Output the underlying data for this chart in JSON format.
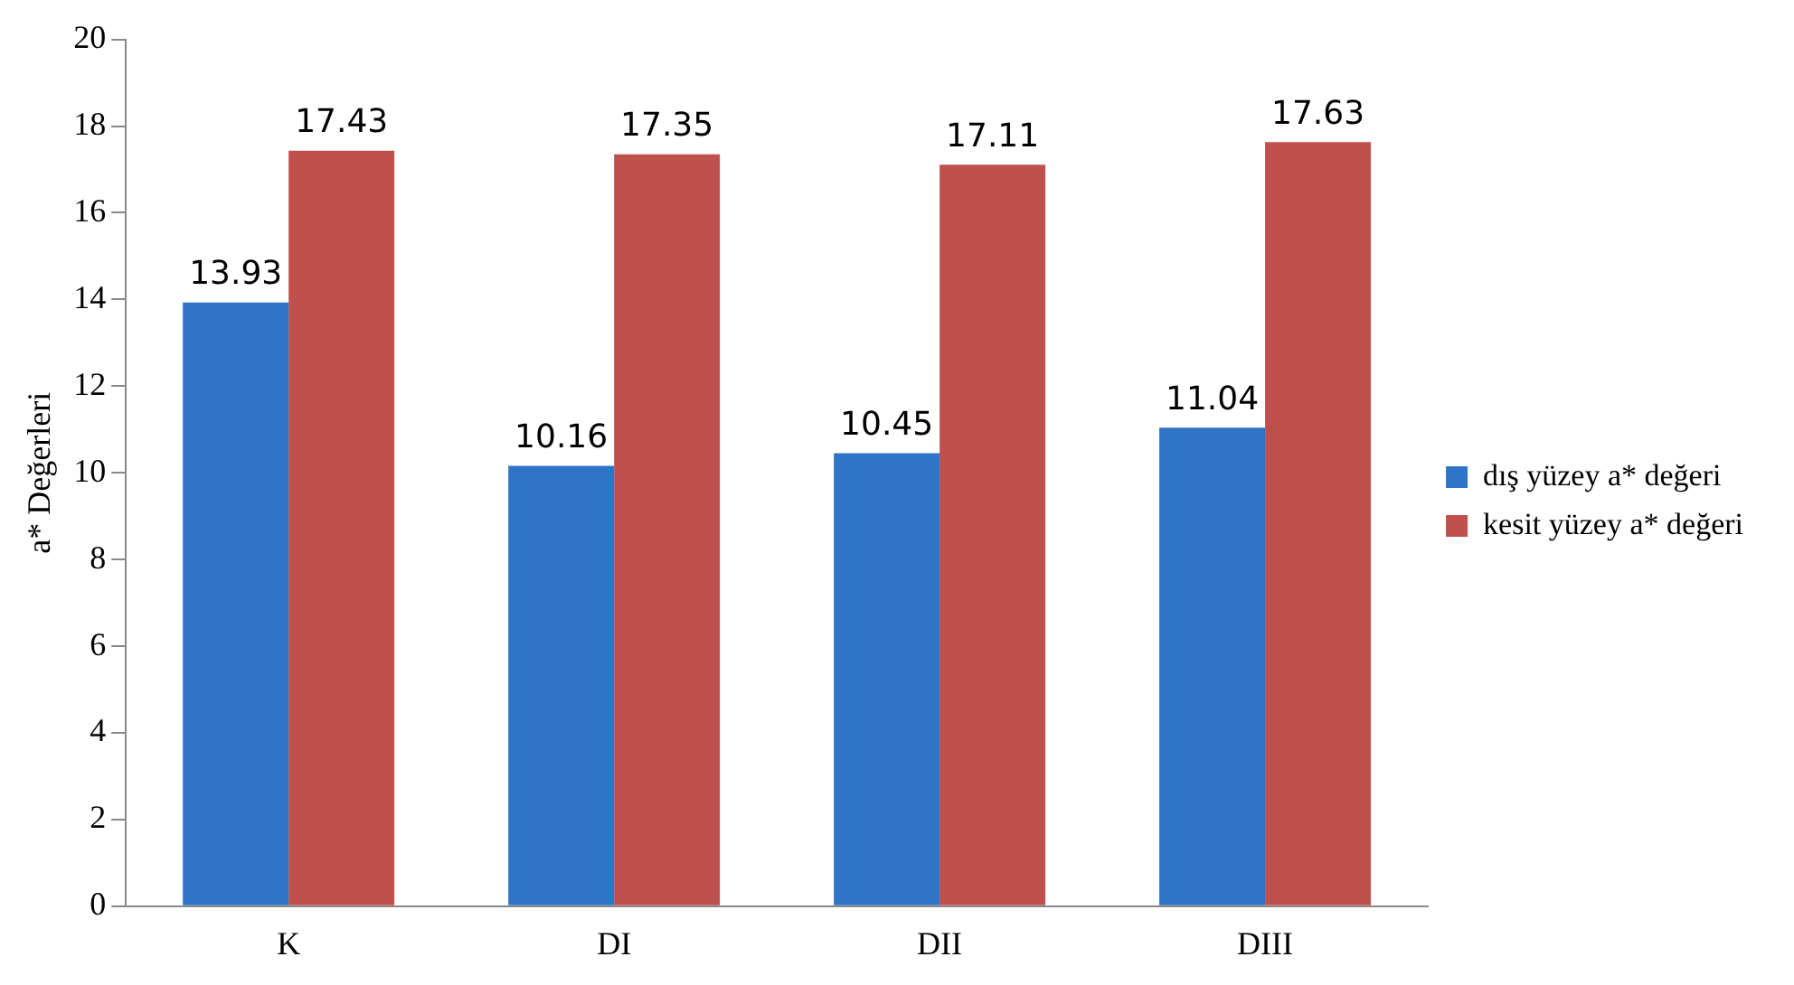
{
  "chart_data": {
    "type": "bar",
    "ylabel": "a* Değerleri",
    "categories": [
      "K",
      "DI",
      "DII",
      "DIII"
    ],
    "series": [
      {
        "name": "dış yüzey a* değeri",
        "color": "#2e75c6",
        "values": [
          13.93,
          10.16,
          10.45,
          11.04
        ]
      },
      {
        "name": "kesit yüzey a* değeri",
        "color": "#c0504d",
        "values": [
          17.43,
          17.35,
          17.11,
          17.63
        ]
      }
    ],
    "ylim": [
      0,
      20
    ],
    "yticks": [
      0,
      2,
      4,
      6,
      8,
      10,
      12,
      14,
      16,
      18,
      20
    ],
    "grid": false,
    "legend": "right",
    "data_labels": true
  }
}
